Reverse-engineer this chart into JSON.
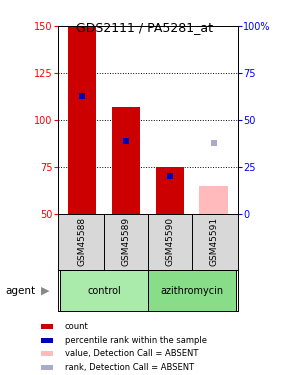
{
  "title": "GDS2111 / PA5281_at",
  "samples": [
    "GSM45588",
    "GSM45589",
    "GSM45590",
    "GSM45591"
  ],
  "absent": [
    false,
    false,
    false,
    true
  ],
  "red_bar_tops": [
    150,
    107,
    75,
    65
  ],
  "blue_marker_values": [
    113,
    89,
    70,
    88
  ],
  "red_bar_bottom": 50,
  "ylim": [
    50,
    150
  ],
  "yticks_left": [
    50,
    75,
    100,
    125,
    150
  ],
  "yticks_right": [
    0,
    25,
    50,
    75,
    100
  ],
  "ytick_labels_right": [
    "0",
    "25",
    "50",
    "75",
    "100%"
  ],
  "groups": [
    {
      "label": "control",
      "samples_idx": [
        0,
        1
      ],
      "color": "#aaeaaa"
    },
    {
      "label": "azithromycin",
      "samples_idx": [
        2,
        3
      ],
      "color": "#88dd88"
    }
  ],
  "agent_label": "agent",
  "bar_width": 0.65,
  "red_color": "#cc0000",
  "blue_color": "#0000bb",
  "pink_color": "#ffbbbb",
  "light_blue_color": "#aaaacc",
  "bg_color": "#d8d8d8",
  "legend_items": [
    {
      "color": "#cc0000",
      "label": "count"
    },
    {
      "color": "#0000bb",
      "label": "percentile rank within the sample"
    },
    {
      "color": "#ffbbbb",
      "label": "value, Detection Call = ABSENT"
    },
    {
      "color": "#aaaacc",
      "label": "rank, Detection Call = ABSENT"
    }
  ]
}
